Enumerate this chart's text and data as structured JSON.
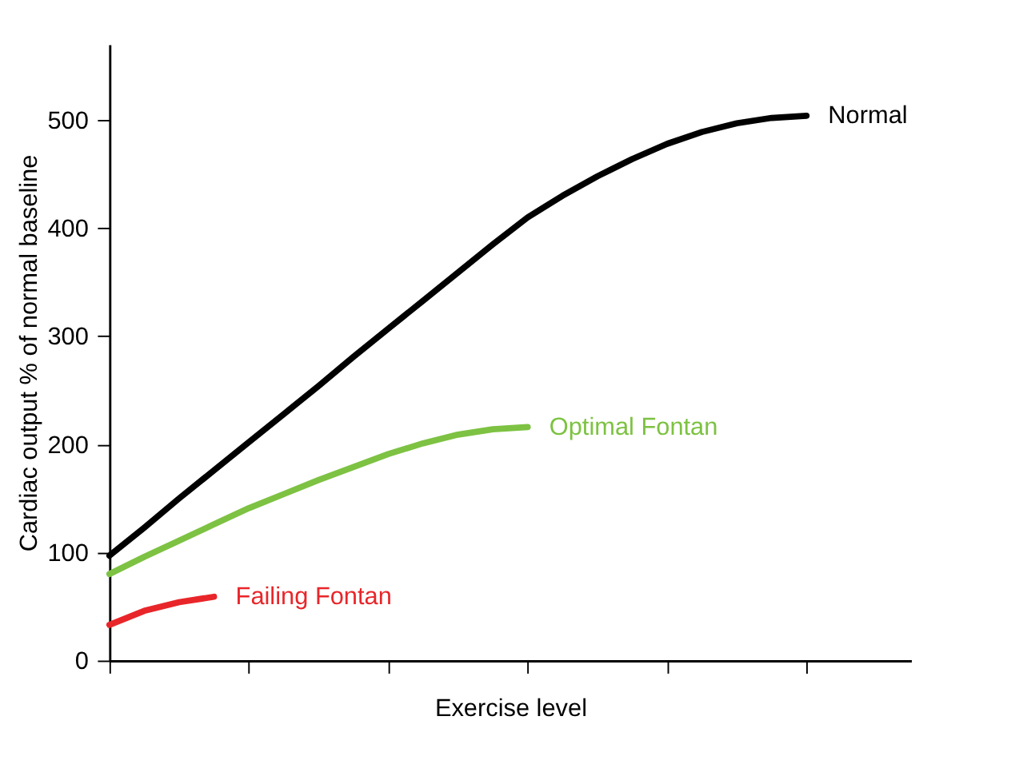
{
  "chart_data": {
    "type": "line",
    "xlabel": "Exercise level",
    "ylabel": "Cardiac output % of normal baseline",
    "categories": [
      null,
      null,
      null,
      null,
      null,
      null,
      null,
      null,
      null,
      null,
      null,
      null,
      null,
      null,
      null,
      null,
      null,
      null,
      null,
      null,
      null,
      null,
      null,
      null
    ],
    "series": [
      {
        "name": "Normal",
        "color": "#000000",
        "values": [
          97,
          123,
          150,
          176,
          202,
          228,
          254,
          281,
          307,
          333,
          359,
          385,
          410,
          430,
          448,
          464,
          478,
          489,
          497,
          502,
          504,
          null,
          null,
          null
        ]
      },
      {
        "name": "Optimal Fontan",
        "color": "#7dc242",
        "values": [
          80,
          96,
          111,
          126,
          141,
          154,
          167,
          179,
          191,
          201,
          209,
          214,
          216,
          null,
          null,
          null,
          null,
          null,
          null,
          null,
          null,
          null,
          null,
          null
        ]
      },
      {
        "name": "Failing Fontan",
        "color": "#e8262a",
        "values": [
          33,
          46,
          54,
          59,
          null,
          null,
          null,
          null,
          null,
          null,
          null,
          null,
          null,
          null,
          null,
          null,
          null,
          null,
          null,
          null,
          null,
          null,
          null,
          null
        ]
      }
    ],
    "ylim": [
      0,
      570
    ],
    "yticks": [
      0,
      100,
      200,
      300,
      400,
      500
    ],
    "grid": false,
    "legend": false,
    "tick_labels": "y",
    "marker": "none",
    "line_style": "solid"
  }
}
